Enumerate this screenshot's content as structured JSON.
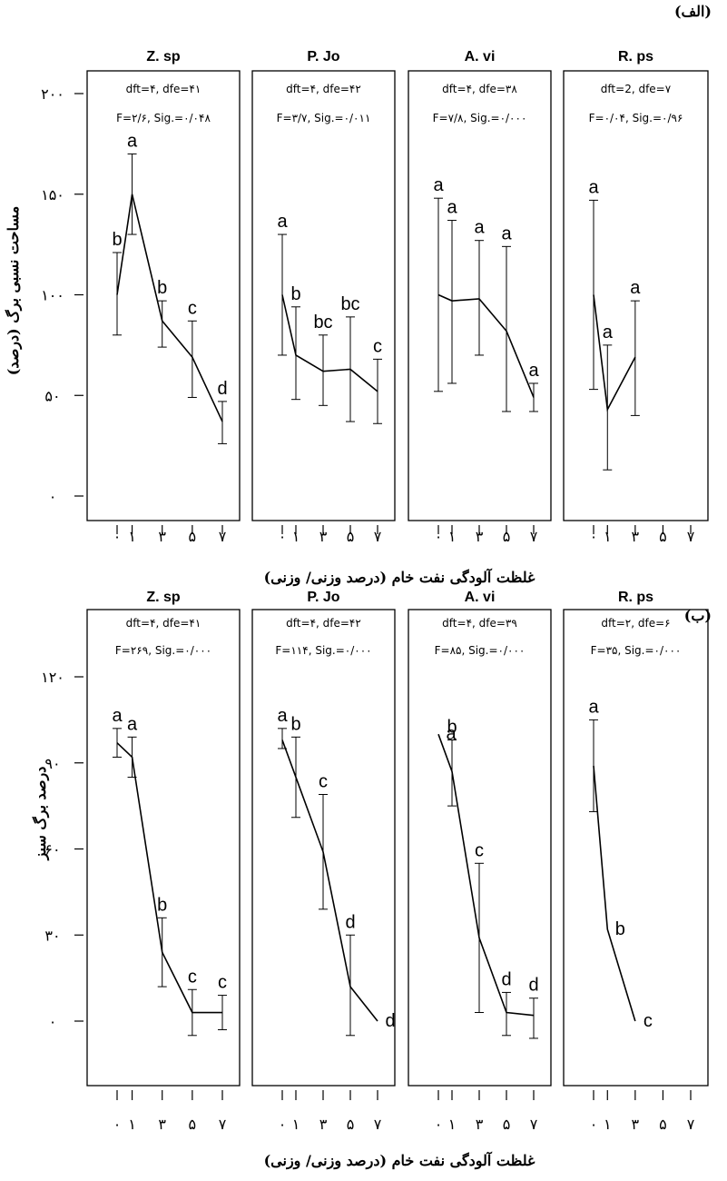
{
  "chart_data": [
    {
      "type": "line",
      "panel_label": "(الف)",
      "ylabel": "مساحت نسبی برگ (درصد)",
      "xlabel": "غلظت آلودگی نفت خام (درصد وزنی/ وزنی)",
      "ylim": [
        0,
        200
      ],
      "y_ticks": [
        0,
        50,
        100,
        150,
        200
      ],
      "y_tick_labels": [
        "۰",
        "۵۰",
        "۱۰۰",
        "۱۵۰",
        "۲۰۰"
      ],
      "x_ticks": [
        0,
        1,
        3,
        5,
        7
      ],
      "x_tick_labels": [
        "۰",
        "۱",
        "۳",
        "۵",
        "۷"
      ],
      "panels": [
        {
          "title": "Z. sp",
          "stat1": "dft=۴, dfe=۴۱",
          "stat2": "F=۲/۶, Sig.=۰/۰۴۸",
          "points": [
            {
              "x": 0,
              "y": 100,
              "lo": 80,
              "hi": 121,
              "letter": "b"
            },
            {
              "x": 1,
              "y": 150,
              "lo": 130,
              "hi": 170,
              "letter": "a"
            },
            {
              "x": 3,
              "y": 87,
              "lo": 74,
              "hi": 97,
              "letter": "b"
            },
            {
              "x": 5,
              "y": 69,
              "lo": 49,
              "hi": 87,
              "letter": "c"
            },
            {
              "x": 7,
              "y": 37,
              "lo": 26,
              "hi": 47,
              "letter": "d"
            }
          ]
        },
        {
          "title": "P. Jo",
          "stat1": "dft=۴, dfe=۴۲",
          "stat2": "F=۳/۷, Sig.=۰/۰۱۱",
          "points": [
            {
              "x": 0,
              "y": 100,
              "lo": 70,
              "hi": 130,
              "letter": "a"
            },
            {
              "x": 1,
              "y": 70,
              "lo": 48,
              "hi": 94,
              "letter": "b"
            },
            {
              "x": 3,
              "y": 62,
              "lo": 45,
              "hi": 80,
              "letter": "bc"
            },
            {
              "x": 5,
              "y": 63,
              "lo": 37,
              "hi": 89,
              "letter": "bc"
            },
            {
              "x": 7,
              "y": 52,
              "lo": 36,
              "hi": 68,
              "letter": "c"
            }
          ]
        },
        {
          "title": "A. vi",
          "stat1": "dft=۴, dfe=۳۸",
          "stat2": "F=۷/۸, Sig.=۰/۰۰۰",
          "points": [
            {
              "x": 0,
              "y": 100,
              "lo": 52,
              "hi": 148,
              "letter": "a"
            },
            {
              "x": 1,
              "y": 97,
              "lo": 56,
              "hi": 137,
              "letter": "a"
            },
            {
              "x": 3,
              "y": 98,
              "lo": 70,
              "hi": 127,
              "letter": "a"
            },
            {
              "x": 5,
              "y": 82,
              "lo": 42,
              "hi": 124,
              "letter": "a"
            },
            {
              "x": 7,
              "y": 49,
              "lo": 42,
              "hi": 56,
              "letter": "a"
            }
          ]
        },
        {
          "title": "R. ps",
          "stat1": "dft=2, dfe=۷",
          "stat2": "F=۰/۰۴, Sig.=۰/۹۶",
          "points": [
            {
              "x": 0,
              "y": 100,
              "lo": 53,
              "hi": 147,
              "letter": "a"
            },
            {
              "x": 1,
              "y": 43,
              "lo": 13,
              "hi": 75,
              "letter": "a"
            },
            {
              "x": 3,
              "y": 69,
              "lo": 40,
              "hi": 97,
              "letter": "a"
            }
          ]
        }
      ]
    },
    {
      "type": "line",
      "panel_label": "(ب)",
      "ylabel": "درصد برگ سبز",
      "xlabel": "غلظت آلودگی نفت خام (درصد وزنی/ وزنی)",
      "ylim": [
        -25,
        120
      ],
      "y_ticks": [
        0,
        30,
        60,
        90,
        120
      ],
      "y_tick_labels": [
        "۰",
        "۳۰",
        "۶۰",
        "۹۰",
        "۱۲۰"
      ],
      "x_ticks": [
        0,
        1,
        3,
        5,
        7
      ],
      "x_tick_labels": [
        "۰",
        "۱",
        "۳",
        "۵",
        "۷"
      ],
      "panels": [
        {
          "title": "Z. sp",
          "stat1": "dft=۴, dfe=۴۱",
          "stat2": "F=۲۶۹, Sig.=۰/۰۰۰",
          "points": [
            {
              "x": 0,
              "y": 97,
              "lo": 92,
              "hi": 102,
              "letter": "a"
            },
            {
              "x": 1,
              "y": 92,
              "lo": 85,
              "hi": 99,
              "letter": "a"
            },
            {
              "x": 3,
              "y": 24,
              "lo": 12,
              "hi": 36,
              "letter": "b"
            },
            {
              "x": 5,
              "y": 3,
              "lo": -5,
              "hi": 11,
              "letter": "c"
            },
            {
              "x": 7,
              "y": 3,
              "lo": -3,
              "hi": 9,
              "letter": "c"
            }
          ]
        },
        {
          "title": "P. Jo",
          "stat1": "dft=۴, dfe=۴۲",
          "stat2": "F=۱۱۴, Sig.=۰/۰۰۰",
          "points": [
            {
              "x": 0,
              "y": 98,
              "lo": 95,
              "hi": 102,
              "letter": "a"
            },
            {
              "x": 1,
              "y": 85,
              "lo": 71,
              "hi": 99,
              "letter": "b"
            },
            {
              "x": 3,
              "y": 59,
              "lo": 39,
              "hi": 79,
              "letter": "c"
            },
            {
              "x": 5,
              "y": 12,
              "lo": -5,
              "hi": 30,
              "letter": "d"
            },
            {
              "x": 7,
              "y": 0,
              "lo": 0,
              "hi": 0,
              "letter": "d"
            }
          ]
        },
        {
          "title": "A. vi",
          "stat1": "dft=۴, dfe=۳۹",
          "stat2": "F=۸۵, Sig.=۰/۰۰۰",
          "points": [
            {
              "x": 0,
              "y": 100,
              "lo": 100,
              "hi": 100,
              "letter": "a"
            },
            {
              "x": 1,
              "y": 87,
              "lo": 75,
              "hi": 98,
              "letter": "b"
            },
            {
              "x": 3,
              "y": 29,
              "lo": 3,
              "hi": 55,
              "letter": "c"
            },
            {
              "x": 5,
              "y": 3,
              "lo": -5,
              "hi": 10,
              "letter": "d"
            },
            {
              "x": 7,
              "y": 2,
              "lo": -6,
              "hi": 8,
              "letter": "d"
            }
          ]
        },
        {
          "title": "R. ps",
          "stat1": "dft=۲, dfe=۶",
          "stat2": "F=۳۵, Sig.=۰/۰۰۰",
          "points": [
            {
              "x": 0,
              "y": 89,
              "lo": 73,
              "hi": 105,
              "letter": "a"
            },
            {
              "x": 1,
              "y": 32,
              "lo": 32,
              "hi": 32,
              "letter": "b"
            },
            {
              "x": 3,
              "y": 0,
              "lo": 0,
              "hi": 0,
              "letter": "c"
            }
          ]
        }
      ]
    }
  ]
}
